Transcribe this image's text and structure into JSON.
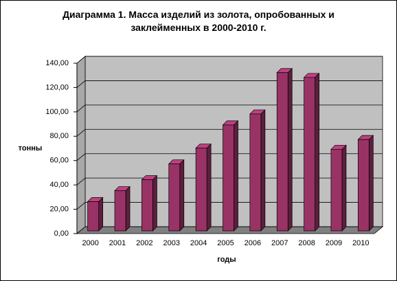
{
  "chart_data": {
    "type": "bar",
    "title": "Диаграмма 1. Масса изделий из золота, опробованных и заклейменных в 2000-2010  г.",
    "y_label": "тонны",
    "x_label": "годы",
    "categories": [
      "2000",
      "2001",
      "2002",
      "2003",
      "2004",
      "2005",
      "2006",
      "2007",
      "2008",
      "2009",
      "2010"
    ],
    "values": [
      24,
      33,
      42,
      55,
      68,
      87,
      96,
      130,
      126,
      67,
      75
    ],
    "color": "#993366",
    "ylim": [
      0,
      140
    ],
    "yticks": [
      {
        "value": 0,
        "label": "0,00"
      },
      {
        "value": 20,
        "label": "20,00"
      },
      {
        "value": 40,
        "label": "40,00"
      },
      {
        "value": 60,
        "label": "60,00"
      },
      {
        "value": 80,
        "label": "80,00"
      },
      {
        "value": 100,
        "label": "100,00"
      },
      {
        "value": 120,
        "label": "120,00"
      },
      {
        "value": 140,
        "label": "140,00"
      }
    ],
    "grid": true
  }
}
